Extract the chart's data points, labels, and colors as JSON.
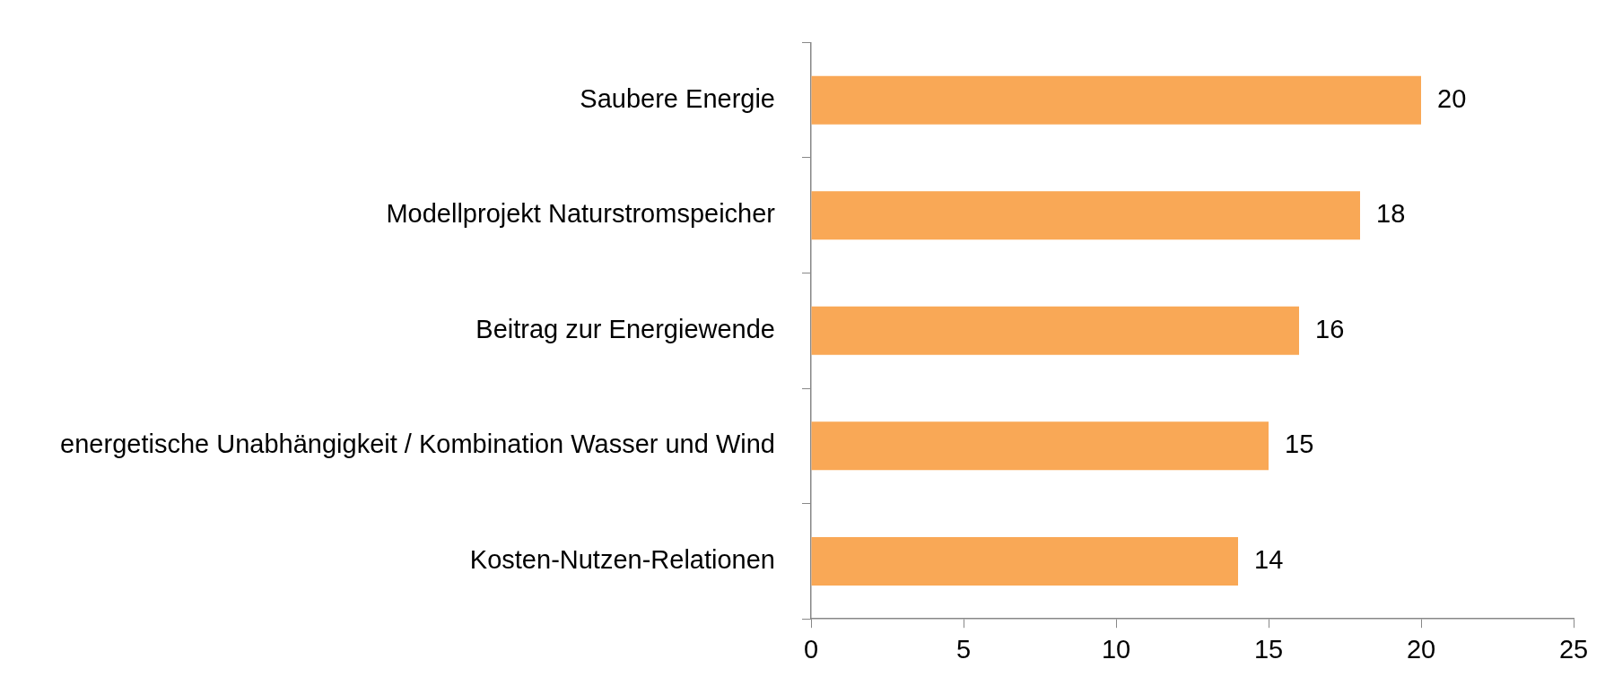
{
  "chart_data": {
    "type": "bar",
    "orientation": "horizontal",
    "categories": [
      "Saubere Energie",
      "Modellprojekt Naturstromspeicher",
      "Beitrag zur Energiewende",
      "energetische Unabhängigkeit / Kombination Wasser und Wind",
      "Kosten-Nutzen-Relationen"
    ],
    "values": [
      20,
      18,
      16,
      15,
      14
    ],
    "color": "#f9a856",
    "xlim": [
      0,
      25
    ],
    "xticks": [
      0,
      5,
      10,
      15,
      20,
      25
    ],
    "data_labels": true,
    "legend": false
  }
}
